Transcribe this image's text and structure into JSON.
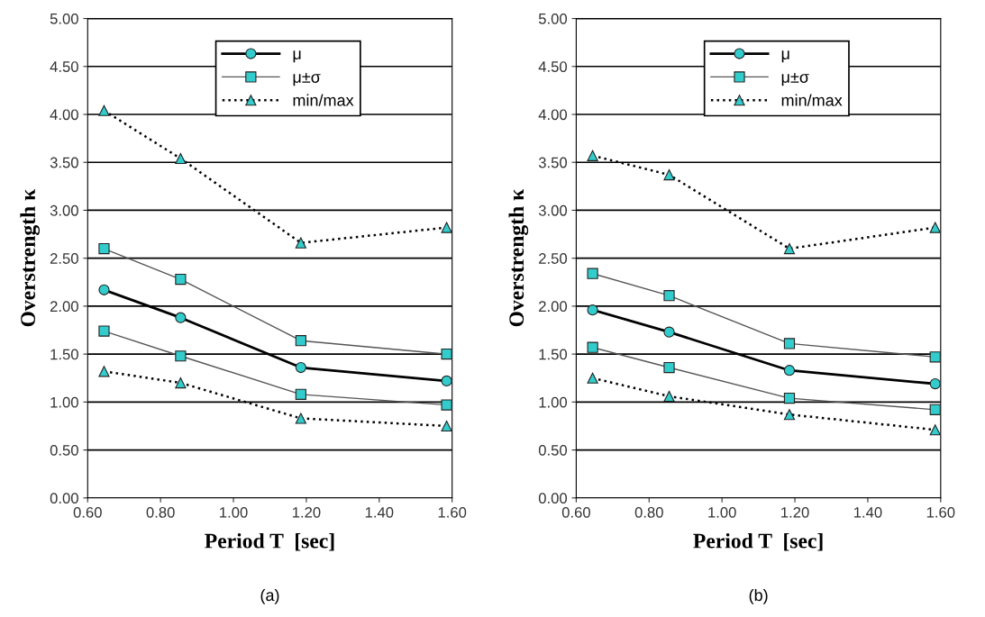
{
  "chart_data": [
    {
      "type": "line",
      "xlabel": "Period T  [sec]",
      "ylabel": "Overstrength κ",
      "annotations": [
        "(a)"
      ],
      "x": [
        0.645,
        0.855,
        1.185,
        1.585
      ],
      "grid": "y",
      "legend": "top",
      "xlim": [
        0.6,
        1.6
      ],
      "ylim": [
        0,
        5
      ],
      "xticks": [
        {
          "value": 0.6,
          "label": "0.60"
        },
        {
          "value": 0.8,
          "label": "0.80"
        },
        {
          "value": 1.0,
          "label": "1.00"
        },
        {
          "value": 1.2,
          "label": "1.20"
        },
        {
          "value": 1.4,
          "label": "1.40"
        },
        {
          "value": 1.6,
          "label": "1.60"
        }
      ],
      "yticks": [
        {
          "value": 0,
          "label": "0.00"
        },
        {
          "value": 0.5,
          "label": "0.50"
        },
        {
          "value": 1,
          "label": "1.00"
        },
        {
          "value": 1.5,
          "label": "1.50"
        },
        {
          "value": 2,
          "label": "2.00"
        },
        {
          "value": 2.5,
          "label": "2.50"
        },
        {
          "value": 3,
          "label": "3.00"
        },
        {
          "value": 3.5,
          "label": "3.50"
        },
        {
          "value": 4,
          "label": "4.00"
        },
        {
          "value": 4.5,
          "label": "4.50"
        },
        {
          "value": 5,
          "label": "5.00"
        }
      ],
      "series": [
        {
          "name": "μ",
          "color": "#33cccc",
          "marker": "circle",
          "line_style": "solid",
          "values": [
            2.17,
            1.88,
            1.36,
            1.22
          ]
        },
        {
          "name": "μ±σ",
          "color": "#33cccc",
          "marker": "square",
          "line_style": "solid",
          "values": [
            2.6,
            2.28,
            1.64,
            1.5
          ]
        },
        {
          "color": "#33cccc",
          "marker": "square",
          "line_style": "solid",
          "values": [
            1.74,
            1.48,
            1.08,
            0.97
          ]
        },
        {
          "name": "min/max",
          "color": "#33cccc",
          "marker": "triangle",
          "line_style": "dotted",
          "values": [
            4.04,
            3.54,
            2.66,
            2.82
          ]
        },
        {
          "color": "#33cccc",
          "marker": "triangle",
          "line_style": "dotted",
          "values": [
            1.32,
            1.2,
            0.83,
            0.75
          ]
        }
      ]
    },
    {
      "type": "line",
      "xlabel": "Period T  [sec]",
      "ylabel": "Overstrength κ",
      "annotations": [
        "(b)"
      ],
      "x": [
        0.645,
        0.855,
        1.185,
        1.585
      ],
      "grid": "y",
      "legend": "top",
      "xlim": [
        0.6,
        1.6
      ],
      "ylim": [
        0,
        5
      ],
      "xticks": [
        {
          "value": 0.6,
          "label": "0.60"
        },
        {
          "value": 0.8,
          "label": "0.80"
        },
        {
          "value": 1.0,
          "label": "1.00"
        },
        {
          "value": 1.2,
          "label": "1.20"
        },
        {
          "value": 1.4,
          "label": "1.40"
        },
        {
          "value": 1.6,
          "label": "1.60"
        }
      ],
      "yticks": [
        {
          "value": 0,
          "label": "0.00"
        },
        {
          "value": 0.5,
          "label": "0.50"
        },
        {
          "value": 1,
          "label": "1.00"
        },
        {
          "value": 1.5,
          "label": "1.50"
        },
        {
          "value": 2,
          "label": "2.00"
        },
        {
          "value": 2.5,
          "label": "2.50"
        },
        {
          "value": 3,
          "label": "3.00"
        },
        {
          "value": 3.5,
          "label": "3.50"
        },
        {
          "value": 4,
          "label": "4.00"
        },
        {
          "value": 4.5,
          "label": "4.50"
        },
        {
          "value": 5,
          "label": "5.00"
        }
      ],
      "series": [
        {
          "name": "μ",
          "color": "#33cccc",
          "marker": "circle",
          "line_style": "solid",
          "values": [
            1.96,
            1.73,
            1.33,
            1.19
          ]
        },
        {
          "name": "μ±σ",
          "color": "#33cccc",
          "marker": "square",
          "line_style": "solid",
          "values": [
            2.34,
            2.11,
            1.61,
            1.47
          ]
        },
        {
          "color": "#33cccc",
          "marker": "square",
          "line_style": "solid",
          "values": [
            1.57,
            1.36,
            1.04,
            0.92
          ]
        },
        {
          "name": "min/max",
          "color": "#33cccc",
          "marker": "triangle",
          "line_style": "dotted",
          "values": [
            3.57,
            3.37,
            2.6,
            2.82
          ]
        },
        {
          "color": "#33cccc",
          "marker": "triangle",
          "line_style": "dotted",
          "values": [
            1.25,
            1.06,
            0.87,
            0.71
          ]
        }
      ]
    }
  ]
}
